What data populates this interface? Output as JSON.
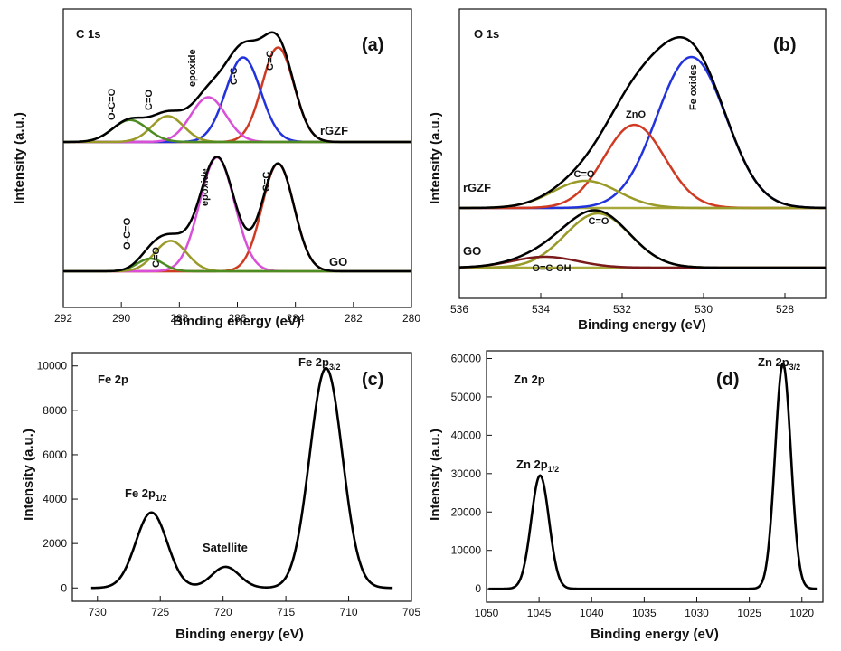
{
  "chart_data": [
    {
      "panel": "(a)",
      "type": "line",
      "element": "C 1s",
      "xlabel": "Binding energy (eV)",
      "ylabel": "Intensity (a.u.)",
      "xlim": [
        292,
        280
      ],
      "x_ticks": [
        292,
        290,
        288,
        286,
        284,
        282,
        280
      ],
      "y_ticks_shown": false,
      "colors": {
        "envelope": "#000000",
        "C=C": "#d03a22",
        "C-C": "#2233dd",
        "epoxide": "#d94fd9",
        "C=O": "#9a9a28",
        "O-C=O": "#4c8c22",
        "baseline": "#a8a83a"
      },
      "series": [
        {
          "name": "rGZF",
          "baseline": 1.0,
          "peaks": [
            {
              "label": "C=C",
              "center": 284.6,
              "height": 0.95
            },
            {
              "label": "C-C",
              "center": 285.8,
              "height": 0.85
            },
            {
              "label": "epoxide",
              "center": 287.0,
              "height": 0.45
            },
            {
              "label": "C=O",
              "center": 288.4,
              "height": 0.26
            },
            {
              "label": "O-C=O",
              "center": 289.7,
              "height": 0.22
            }
          ]
        },
        {
          "name": "GO",
          "baseline": 0.0,
          "peaks": [
            {
              "label": "C=C",
              "center": 284.6,
              "height": 0.85
            },
            {
              "label": "epoxide",
              "center": 286.7,
              "height": 0.9
            },
            {
              "label": "C=O",
              "center": 288.3,
              "height": 0.24
            },
            {
              "label": "O-C=O",
              "center": 289.0,
              "height": 0.1
            }
          ]
        }
      ]
    },
    {
      "panel": "(b)",
      "type": "line",
      "element": "O 1s",
      "xlabel": "Binding energy (eV)",
      "ylabel": "Intensity (a.u.)",
      "xlim": [
        536,
        527
      ],
      "x_ticks": [
        536,
        534,
        532,
        530,
        528
      ],
      "y_ticks_shown": false,
      "colors": {
        "envelope": "#000000",
        "Fe oxides": "#2233dd",
        "ZnO": "#d03a22",
        "C=O": "#9a9a28",
        "O=C-OH": "#7a1a1a",
        "baseline": "#a8a83a"
      },
      "series": [
        {
          "name": "rGZF",
          "baseline": 0.45,
          "peaks": [
            {
              "label": "Fe oxides",
              "center": 530.3,
              "height": 1.0
            },
            {
              "label": "ZnO",
              "center": 531.7,
              "height": 0.55
            },
            {
              "label": "C=O",
              "center": 532.9,
              "height": 0.18
            }
          ]
        },
        {
          "name": "GO",
          "baseline": 0.0,
          "peaks": [
            {
              "label": "C=O",
              "center": 532.6,
              "height": 0.3
            },
            {
              "label": "O=C-OH",
              "center": 533.9,
              "height": 0.06
            }
          ]
        }
      ]
    },
    {
      "panel": "(c)",
      "type": "line",
      "element": "Fe 2p",
      "xlabel": "Binding energy (eV)",
      "ylabel": "Intensity (a.u.)",
      "xlim": [
        732,
        705
      ],
      "ylim": [
        -600,
        10600
      ],
      "x_ticks": [
        730,
        725,
        720,
        715,
        710,
        705
      ],
      "y_ticks": [
        0,
        2000,
        4000,
        6000,
        8000,
        10000
      ],
      "series": [
        {
          "name": "Fe 2p",
          "peaks": [
            {
              "label": "Fe 2p1/2",
              "center": 725.7,
              "height": 3400
            },
            {
              "label": "Satellite",
              "center": 719.8,
              "height": 950
            },
            {
              "label": "Fe 2p3/2",
              "center": 711.8,
              "height": 9900
            }
          ]
        }
      ],
      "annotations": [
        {
          "text": "Fe 2p",
          "sub": "1/2",
          "near_x": 725.7
        },
        {
          "text": "Satellite",
          "sub": "",
          "near_x": 719.8
        },
        {
          "text": "Fe 2p",
          "sub": "3/2",
          "near_x": 711.8
        }
      ]
    },
    {
      "panel": "(d)",
      "type": "line",
      "element": "Zn 2p",
      "xlabel": "Binding energy (eV)",
      "ylabel": "Intensity (a.u.)",
      "xlim": [
        1050,
        1018
      ],
      "ylim": [
        -3500,
        62000
      ],
      "x_ticks": [
        1050,
        1045,
        1040,
        1035,
        1030,
        1025,
        1020
      ],
      "y_ticks": [
        0,
        10000,
        20000,
        30000,
        40000,
        50000,
        60000
      ],
      "series": [
        {
          "name": "Zn 2p",
          "peaks": [
            {
              "label": "Zn 2p1/2",
              "center": 1044.9,
              "height": 29500
            },
            {
              "label": "Zn 2p3/2",
              "center": 1021.8,
              "height": 58700
            }
          ]
        }
      ],
      "annotations": [
        {
          "text": "Zn 2p",
          "sub": "1/2",
          "near_x": 1044.9
        },
        {
          "text": "Zn 2p",
          "sub": "3/2",
          "near_x": 1021.8
        }
      ]
    }
  ]
}
